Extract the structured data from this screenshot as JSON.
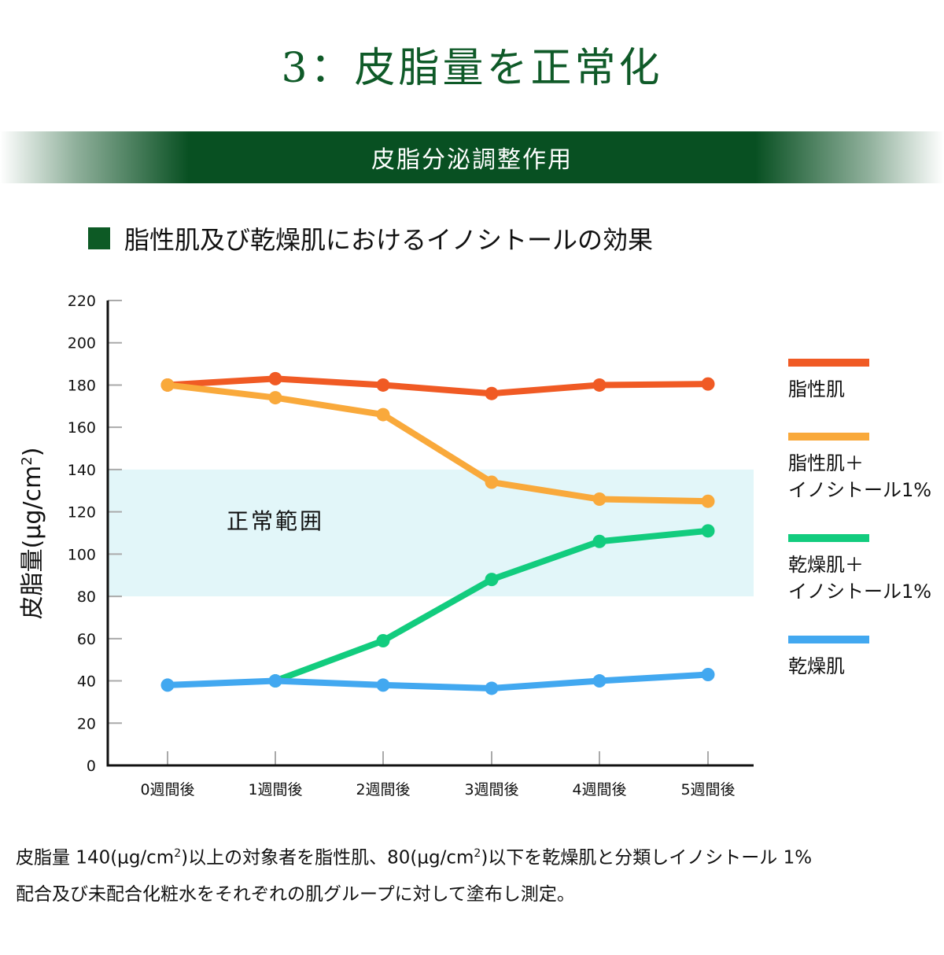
{
  "header": {
    "title": "3：皮脂量を正常化",
    "banner": "皮脂分泌調整作用",
    "subtitle": "脂性肌及び乾燥肌におけるイノシトールの効果"
  },
  "colors": {
    "brand_green": "#0f5a28",
    "banner_green": "#085022",
    "normal_range_fill": "#e2f6f9"
  },
  "chart_data": {
    "type": "line",
    "title": "脂性肌及び乾燥肌におけるイノシトールの効果",
    "xlabel": "",
    "ylabel": "皮脂量(μg/cm²)",
    "ylabel_main": "皮脂量(μg/cm",
    "ylabel_sup": "2",
    "ylabel_end": ")",
    "ylim": [
      0,
      220
    ],
    "yticks": [
      0,
      20,
      40,
      60,
      80,
      100,
      120,
      140,
      160,
      180,
      200,
      220
    ],
    "categories": [
      "0週間後",
      "1週間後",
      "2週間後",
      "3週間後",
      "4週間後",
      "5週間後"
    ],
    "grid": false,
    "legend_position": "right",
    "band": {
      "label": "正常範囲",
      "from": 80,
      "to": 140
    },
    "series": [
      {
        "name": "脂性肌",
        "legend_label": "脂性肌",
        "color": "#f05a24",
        "start_index": 0,
        "values": [
          180,
          183,
          180,
          176,
          180,
          180.5
        ]
      },
      {
        "name": "脂性肌＋イノシトール1%",
        "legend_label": "脂性肌＋\nイノシトール1%",
        "color": "#f9a93b",
        "start_index": 0,
        "values": [
          180,
          174,
          166,
          134,
          126,
          125
        ]
      },
      {
        "name": "乾燥肌＋イノシトール1%",
        "legend_label": "乾燥肌＋\nイノシトール1%",
        "color": "#12cc7e",
        "start_index": 1,
        "values": [
          40,
          59,
          88,
          106,
          111
        ]
      },
      {
        "name": "乾燥肌",
        "legend_label": "乾燥肌",
        "color": "#42a8f0",
        "start_index": 0,
        "values": [
          38,
          40,
          38,
          36.5,
          40,
          43
        ]
      }
    ]
  },
  "footnote": {
    "line1_a": "皮脂量 140(μg/cm",
    "line1_sup1": "2",
    "line1_b": ")以上の対象者を脂性肌、80(μg/cm",
    "line1_sup2": "2",
    "line1_c": ")以下を乾燥肌と分類しイノシトール 1%",
    "line2": "配合及び未配合化粧水をそれぞれの肌グループに対して塗布し測定。"
  }
}
